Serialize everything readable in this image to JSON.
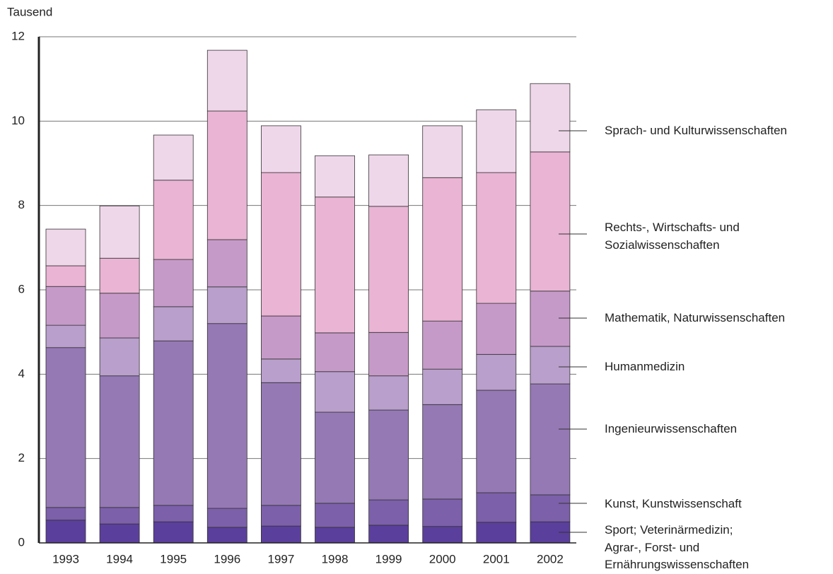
{
  "chart_data": {
    "type": "stacked_bar",
    "y_label": "Tausend",
    "categories": [
      "1993",
      "1994",
      "1995",
      "1996",
      "1997",
      "1998",
      "1999",
      "2000",
      "2001",
      "2002"
    ],
    "ylim": [
      0,
      12
    ],
    "yticks": [
      0,
      2,
      4,
      6,
      8,
      10,
      12
    ],
    "grid": true,
    "series": [
      {
        "name": "Sport; Veterinärmedizin;\nAgrar-, Forst- und\nErnährungswissenschaften",
        "color": "#5b3f9c",
        "values": [
          0.54,
          0.45,
          0.5,
          0.37,
          0.4,
          0.37,
          0.42,
          0.39,
          0.49,
          0.5
        ]
      },
      {
        "name": "Kunst, Kunstwissenschaft",
        "color": "#7c60aa",
        "values": [
          0.3,
          0.39,
          0.39,
          0.45,
          0.49,
          0.57,
          0.6,
          0.65,
          0.7,
          0.64
        ]
      },
      {
        "name": "Ingenieurwissenschaften",
        "color": "#9579b5",
        "values": [
          3.79,
          3.12,
          3.9,
          4.38,
          2.91,
          2.16,
          2.13,
          2.24,
          2.43,
          2.63
        ]
      },
      {
        "name": "Humanmedizin",
        "color": "#b99fcb",
        "values": [
          0.53,
          0.9,
          0.81,
          0.87,
          0.56,
          0.96,
          0.81,
          0.84,
          0.85,
          0.89
        ]
      },
      {
        "name": "Mathematik, Naturwissenschaften",
        "color": "#c69ac8",
        "values": [
          0.92,
          1.06,
          1.12,
          1.12,
          1.02,
          0.92,
          1.03,
          1.14,
          1.21,
          1.31
        ]
      },
      {
        "name": "Rechts-, Wirtschafts- und\nSozialwissenschaften",
        "color": "#eab4d4",
        "values": [
          0.49,
          0.83,
          1.88,
          3.05,
          3.4,
          3.22,
          2.99,
          3.4,
          3.1,
          3.3
        ]
      },
      {
        "name": "Sprach- und Kulturwissenschaften",
        "color": "#efd7ea",
        "values": [
          0.87,
          1.24,
          1.07,
          1.44,
          1.11,
          0.98,
          1.22,
          1.23,
          1.49,
          1.62
        ]
      }
    ]
  }
}
